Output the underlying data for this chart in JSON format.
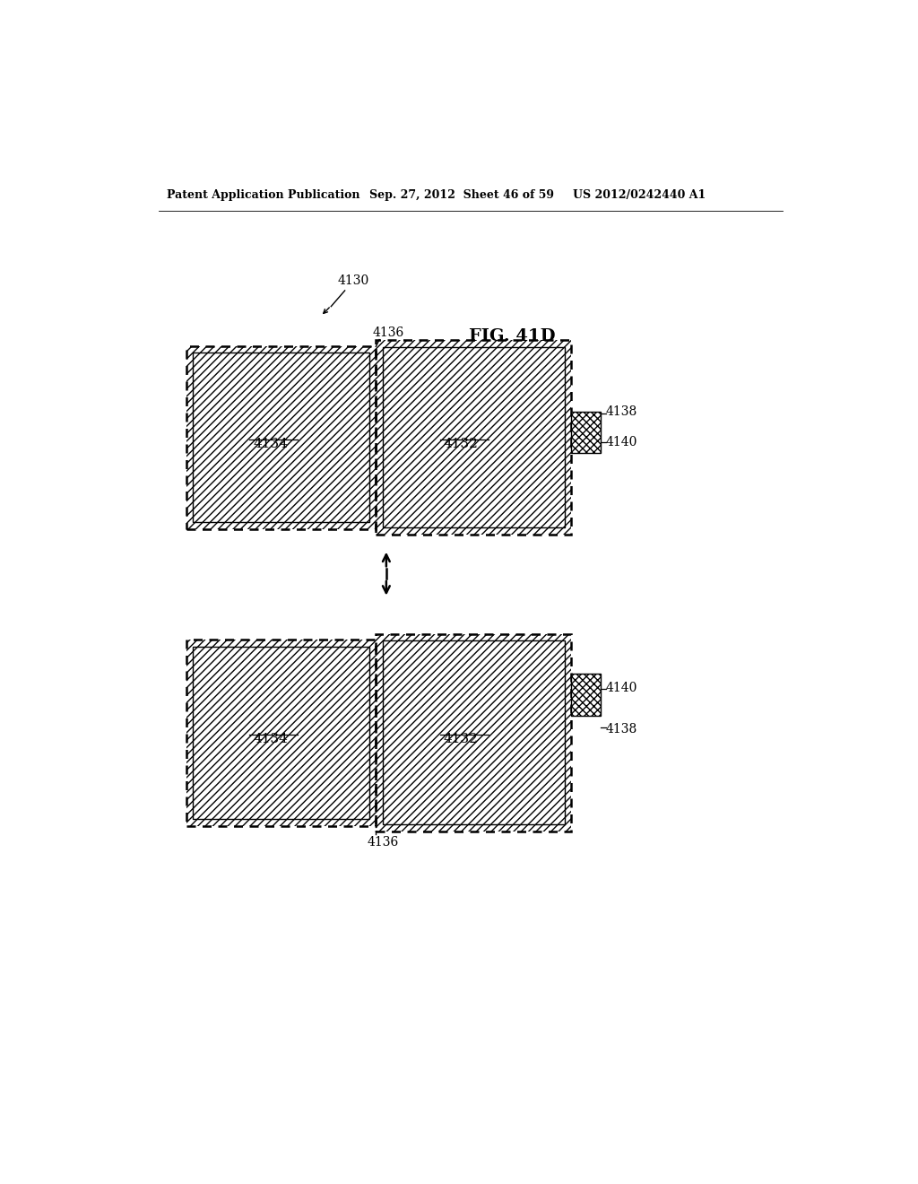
{
  "bg_color": "#ffffff",
  "header_left": "Patent Application Publication",
  "header_mid": "Sep. 27, 2012  Sheet 46 of 59",
  "header_right": "US 2012/0242440 A1",
  "fig_label": "FIG. 41D",
  "label_4130": "4130",
  "label_4136_top": "4136",
  "label_4136_bot": "4136",
  "label_4132": "4132",
  "label_4134": "4134",
  "label_4138_top": "4138",
  "label_4138_bot": "4138",
  "label_4140_top": "4140",
  "label_4140_bot": "4140",
  "line_color": "#000000"
}
